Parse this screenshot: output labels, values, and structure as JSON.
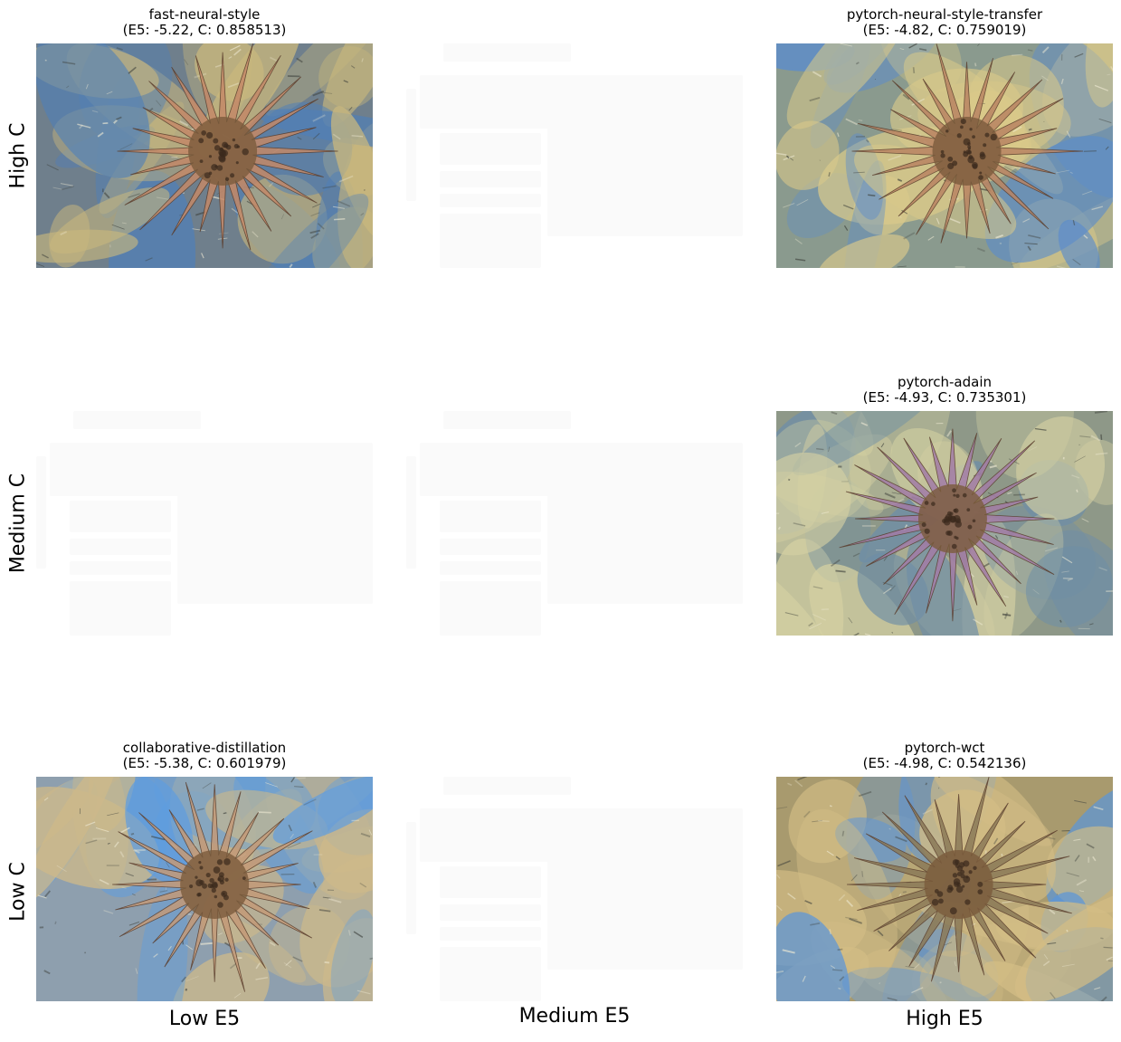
{
  "rows": [
    "High C",
    "Medium C",
    "Low C"
  ],
  "columns": [
    "Low E5",
    "Medium E5",
    "High E5"
  ],
  "cells": [
    {
      "row": "High C",
      "column": "Low E5",
      "method": "fast-neural-style",
      "e5": "-5.22",
      "c": "0.858513",
      "title_line1": "fast-neural-style",
      "title_line2": "(E5: -5.22, C: 0.858513)",
      "palette": [
        "#6f7f8c",
        "#c9b77d",
        "#c48968",
        "#4f7fb8"
      ]
    },
    {
      "row": "High C",
      "column": "Medium E5",
      "method": "",
      "title_line1": "",
      "title_line2": ""
    },
    {
      "row": "High C",
      "column": "High E5",
      "method": "pytorch-neural-style-transfer",
      "e5": "-4.82",
      "c": "0.759019",
      "title_line1": "pytorch-neural-style-transfer",
      "title_line2": "(E5: -4.82, C: 0.759019)",
      "palette": [
        "#8a9a8e",
        "#d9c98a",
        "#b98463",
        "#5b8ccc"
      ]
    },
    {
      "row": "Medium C",
      "column": "Low E5",
      "method": "",
      "title_line1": "",
      "title_line2": ""
    },
    {
      "row": "Medium C",
      "column": "Medium E5",
      "method": "",
      "title_line1": "",
      "title_line2": ""
    },
    {
      "row": "Medium C",
      "column": "High E5",
      "method": "pytorch-adain",
      "e5": "-4.93",
      "c": "0.735301",
      "title_line1": "pytorch-adain",
      "title_line2": "(E5: -4.93, C: 0.735301)",
      "palette": [
        "#8e9888",
        "#d4d0a2",
        "#a27ca6",
        "#6f8ea6"
      ]
    },
    {
      "row": "Low C",
      "column": "Low E5",
      "method": "collaborative-distillation",
      "e5": "-5.38",
      "c": "0.601979",
      "title_line1": "collaborative-distillation",
      "title_line2": "(E5: -5.38, C: 0.601979)",
      "palette": [
        "#8e9fae",
        "#cdb98a",
        "#c49a78",
        "#5e9de0"
      ]
    },
    {
      "row": "Low C",
      "column": "Medium E5",
      "method": "",
      "title_line1": "",
      "title_line2": ""
    },
    {
      "row": "Low C",
      "column": "High E5",
      "method": "pytorch-wct",
      "e5": "-4.98",
      "c": "0.542136",
      "title_line1": "pytorch-wct",
      "title_line2": "(E5: -4.98, C: 0.542136)",
      "palette": [
        "#a89a6e",
        "#d3bd85",
        "#8b7a58",
        "#5c95d8"
      ]
    }
  ]
}
